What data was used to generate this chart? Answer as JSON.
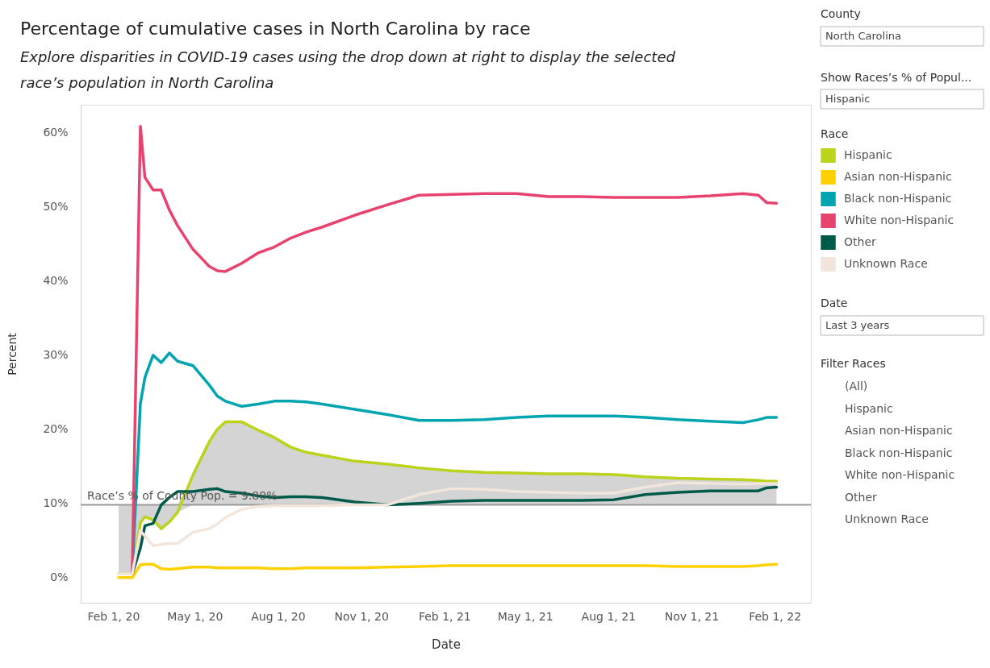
{
  "chart_data": [
    {
      "type": "line",
      "title": "Percentage of cumulative cases in North Carolina by race",
      "subtitle": "Explore disparities in COVID-19 cases using the drop down at right to display the selected race’s population in North Carolina",
      "xlabel": "Date",
      "ylabel": "Percent",
      "legend_title": "Race",
      "legend": "top right",
      "grid": false,
      "line_style": "solid",
      "marker": "none",
      "x": [
        "2020-02-07",
        "2020-02-22",
        "2020-03-02",
        "2020-03-07",
        "2020-03-16",
        "2020-03-25",
        "2020-04-03",
        "2020-04-12",
        "2020-04-29",
        "2020-05-17",
        "2020-05-26",
        "2020-06-04",
        "2020-06-22",
        "2020-07-10",
        "2020-07-28",
        "2020-08-15",
        "2020-09-01",
        "2020-09-19",
        "2020-10-25",
        "2020-11-30",
        "2021-01-04",
        "2021-02-09",
        "2021-03-17",
        "2021-04-22",
        "2021-05-27",
        "2021-07-02",
        "2021-08-07",
        "2021-09-11",
        "2021-10-17",
        "2021-11-22",
        "2021-12-28",
        "2022-01-14",
        "2022-01-23",
        "2022-02-03"
      ],
      "xlim": [
        "2019-12-27",
        "2022-03-13"
      ],
      "xticks": [
        {
          "value": "2020-02-01",
          "label": "Feb 1, 20"
        },
        {
          "value": "2020-05-01",
          "label": "May 1, 20"
        },
        {
          "value": "2020-08-01",
          "label": "Aug 1, 20"
        },
        {
          "value": "2020-11-01",
          "label": "Nov 1, 20"
        },
        {
          "value": "2021-02-01",
          "label": "Feb 1, 21"
        },
        {
          "value": "2021-05-01",
          "label": "May 1, 21"
        },
        {
          "value": "2021-08-01",
          "label": "Aug 1, 21"
        },
        {
          "value": "2021-11-01",
          "label": "Nov 1, 21"
        },
        {
          "value": "2022-02-01",
          "label": "Feb 1, 22"
        }
      ],
      "ylim": [
        -3.4,
        63.8
      ],
      "yticks": [
        {
          "value": 0,
          "label": "0%"
        },
        {
          "value": 10,
          "label": "10%"
        },
        {
          "value": 20,
          "label": "20%"
        },
        {
          "value": 30,
          "label": "30%"
        },
        {
          "value": 40,
          "label": "40%"
        },
        {
          "value": 50,
          "label": "50%"
        },
        {
          "value": 60,
          "label": "60%"
        }
      ],
      "ref_lines": [
        {
          "axis": "y",
          "value": 9.8,
          "label": "Race’s % of County Pop. = 9.80%",
          "color": "#9a9a9a"
        }
      ],
      "series": [
        {
          "name": "Hispanic",
          "color": "#bcd31c",
          "values": [
            0.5,
            0.5,
            7.4,
            8.2,
            7.8,
            6.6,
            7.5,
            8.8,
            13.8,
            18.3,
            20.0,
            21.0,
            21.0,
            19.9,
            18.9,
            17.6,
            16.9,
            16.5,
            15.7,
            15.3,
            14.8,
            14.4,
            14.2,
            14.1,
            14.0,
            14.0,
            13.9,
            13.6,
            13.4,
            13.3,
            13.2,
            13.1,
            13.0,
            13.0
          ],
          "lower": [
            0.5,
            0.5,
            7.4,
            8.2,
            7.8,
            6.6,
            7.5,
            8.8,
            9.8,
            9.8,
            9.8,
            9.8,
            9.8,
            9.8,
            9.8,
            9.8,
            9.8,
            9.8,
            9.8,
            9.8,
            9.8,
            9.8,
            9.8,
            9.8,
            9.8,
            9.8,
            9.8,
            9.8,
            9.8,
            9.8,
            9.8,
            9.8,
            9.8,
            9.8
          ],
          "upper": [
            9.8,
            9.8,
            9.8,
            9.8,
            9.8,
            9.8,
            9.8,
            9.8,
            13.8,
            18.3,
            20.0,
            21.0,
            21.0,
            19.9,
            18.9,
            17.6,
            16.9,
            16.5,
            15.7,
            15.3,
            14.8,
            14.4,
            14.2,
            14.1,
            14.0,
            14.0,
            13.9,
            13.6,
            13.4,
            13.3,
            13.2,
            13.1,
            13.0,
            13.0
          ]
        },
        {
          "name": "Asian non-Hispanic",
          "color": "#ffd100",
          "values": [
            0.0,
            0.0,
            1.7,
            1.8,
            1.8,
            1.2,
            1.1,
            1.2,
            1.4,
            1.4,
            1.3,
            1.3,
            1.3,
            1.3,
            1.2,
            1.2,
            1.3,
            1.3,
            1.3,
            1.4,
            1.5,
            1.6,
            1.6,
            1.6,
            1.6,
            1.6,
            1.6,
            1.6,
            1.5,
            1.5,
            1.5,
            1.6,
            1.7,
            1.8
          ]
        },
        {
          "name": "Black non-Hispanic",
          "color": "#00a5b0",
          "values": [
            null,
            0.5,
            23.5,
            27.0,
            30.0,
            29.0,
            30.3,
            29.2,
            28.6,
            26.0,
            24.5,
            23.8,
            23.1,
            23.4,
            23.8,
            23.8,
            23.7,
            23.4,
            22.7,
            22.0,
            21.2,
            21.2,
            21.3,
            21.6,
            21.8,
            21.8,
            21.8,
            21.6,
            21.3,
            21.1,
            20.9,
            21.3,
            21.6,
            21.6
          ]
        },
        {
          "name": "White non-Hispanic",
          "color": "#e8426f",
          "values": [
            null,
            0.5,
            60.9,
            54.0,
            52.3,
            52.3,
            49.6,
            47.5,
            44.3,
            42.0,
            41.4,
            41.3,
            42.4,
            43.8,
            44.6,
            45.8,
            46.6,
            47.3,
            48.9,
            50.3,
            51.6,
            51.7,
            51.8,
            51.8,
            51.4,
            51.4,
            51.3,
            51.3,
            51.3,
            51.5,
            51.8,
            51.6,
            50.6,
            50.5
          ]
        },
        {
          "name": "Other",
          "color": "#005a4a",
          "values": [
            null,
            0.5,
            4.0,
            7.0,
            7.3,
            9.8,
            10.8,
            11.6,
            11.6,
            11.9,
            12.0,
            11.6,
            11.4,
            11.0,
            10.8,
            10.9,
            10.9,
            10.8,
            10.2,
            9.8,
            10.0,
            10.3,
            10.4,
            10.4,
            10.4,
            10.4,
            10.5,
            11.2,
            11.5,
            11.7,
            11.7,
            11.7,
            12.1,
            12.2
          ]
        },
        {
          "name": "Unknown Race",
          "color": "#f2e6dc",
          "values": [
            0.5,
            0.5,
            6.3,
            5.6,
            4.3,
            4.5,
            4.6,
            4.6,
            6.1,
            6.6,
            7.2,
            8.1,
            9.2,
            9.6,
            9.7,
            9.7,
            9.7,
            9.7,
            9.8,
            9.8,
            11.2,
            12.0,
            11.9,
            11.6,
            11.5,
            11.4,
            11.4,
            12.2,
            12.8,
            12.7,
            12.6,
            12.7,
            12.7,
            12.7
          ]
        }
      ]
    },
    {
      "type": "other",
      "annotations": [
        "County",
        "North Carolina",
        "Show Races’s % of Popul...",
        "Hispanic",
        "Date",
        "Last 3 years",
        "Filter Races",
        "(All)",
        "Hispanic",
        "Asian non-Hispanic",
        "Black non-Hispanic",
        "White non-Hispanic",
        "Other",
        "Unknown Race"
      ]
    }
  ]
}
